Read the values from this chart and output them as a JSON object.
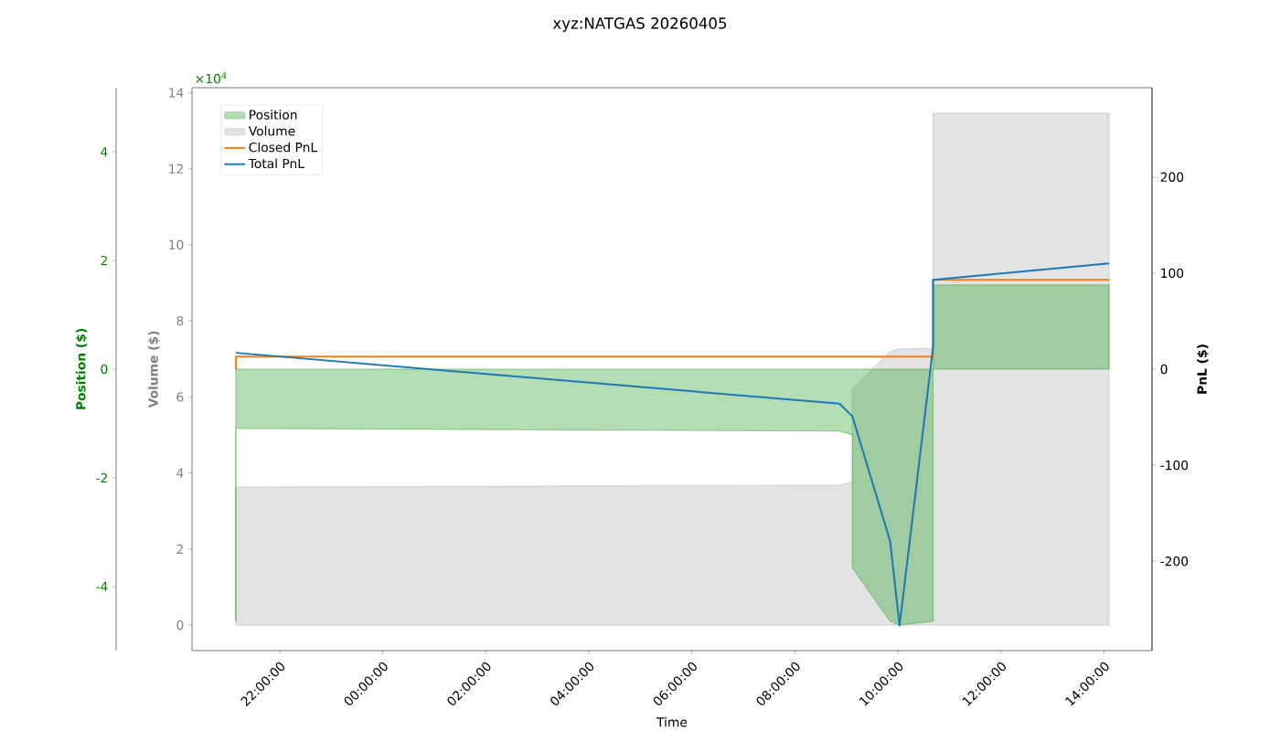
{
  "chart_data": {
    "type": "line",
    "title": "xyz:NATGAS 20260405",
    "xlabel": "Time",
    "ylabel": "Position ($)",
    "y2label": "Volume ($)",
    "y3label": "PnL ($)",
    "annotations": [
      "×10$^{4}$"
    ],
    "legend": "top left",
    "xlim": [
      "2026-04-04T20:18",
      "2026-04-05T14:56"
    ],
    "xticks": [
      {
        "value": "2026-04-04T22:00",
        "label": "22:00:00"
      },
      {
        "value": "2026-04-05T00:00",
        "label": "00:00:00"
      },
      {
        "value": "2026-04-05T02:00",
        "label": "02:00:00"
      },
      {
        "value": "2026-04-05T04:00",
        "label": "04:00:00"
      },
      {
        "value": "2026-04-05T06:00",
        "label": "06:00:00"
      },
      {
        "value": "2026-04-05T08:00",
        "label": "08:00:00"
      },
      {
        "value": "2026-04-05T10:00",
        "label": "10:00:00"
      },
      {
        "value": "2026-04-05T12:00",
        "label": "12:00:00"
      },
      {
        "value": "2026-04-05T14:00",
        "label": "14:00:00"
      }
    ],
    "ylim": [
      -5.18,
      5.18
    ],
    "yticks": [
      -4,
      -2,
      0,
      2,
      4
    ],
    "y2lim": [
      -0.67,
      14.13
    ],
    "y2ticks": [
      0,
      2,
      4,
      6,
      8,
      10,
      12,
      14
    ],
    "y3lim": [
      -293,
      293
    ],
    "y3ticks": [
      -200,
      -100,
      0,
      100,
      200
    ],
    "series": [
      {
        "name": "Position",
        "type": "area",
        "color": "#2ca02c",
        "x": [
          "2026-04-04T21:09",
          "2026-04-04T21:09",
          "2026-04-05T08:52",
          "2026-04-05T09:07",
          "2026-04-05T09:07",
          "2026-04-05T09:51",
          "2026-04-05T10:02",
          "2026-04-05T10:41",
          "2026-04-05T10:41",
          "2026-04-05T14:06"
        ],
        "values": [
          -4.64,
          -1.09,
          -1.14,
          -1.21,
          -3.66,
          -4.64,
          -4.71,
          -4.64,
          1.55,
          1.55
        ]
      },
      {
        "name": "Volume",
        "type": "area",
        "axis": "y2",
        "color": "#b1b1b1",
        "x": [
          "2026-04-04T21:09",
          "2026-04-05T08:52",
          "2026-04-05T09:07",
          "2026-04-05T09:07",
          "2026-04-05T09:51",
          "2026-04-05T10:02",
          "2026-04-05T10:41",
          "2026-04-05T10:41",
          "2026-04-05T14:06"
        ],
        "values": [
          3.63,
          3.68,
          3.77,
          6.2,
          7.2,
          7.26,
          7.28,
          13.46,
          13.46
        ]
      },
      {
        "name": "Closed PnL",
        "type": "step",
        "axis": "y3",
        "color": "#ff7f0e",
        "x": [
          "2026-04-04T21:09",
          "2026-04-04T21:09",
          "2026-04-05T10:41",
          "2026-04-05T14:06"
        ],
        "values": [
          0,
          13,
          93,
          93
        ]
      },
      {
        "name": "Total PnL",
        "axis": "y3",
        "color": "#1f77b4",
        "x": [
          "2026-04-04T21:09",
          "2026-04-05T08:52",
          "2026-04-05T09:07",
          "2026-04-05T09:51",
          "2026-04-05T10:02",
          "2026-04-05T10:41",
          "2026-04-05T10:41",
          "2026-04-05T14:06"
        ],
        "values": [
          17,
          -36,
          -49,
          -179,
          -267,
          23,
          93,
          110
        ]
      }
    ]
  }
}
